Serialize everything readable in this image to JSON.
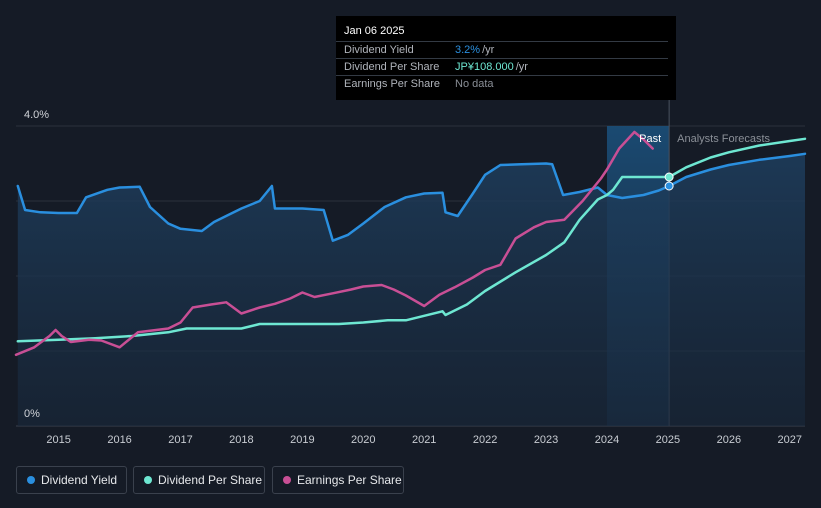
{
  "chart_data": {
    "type": "line",
    "title": "",
    "xlabel": "",
    "ylabel": "",
    "xlim": [
      2014.3,
      2027.25
    ],
    "ylim": [
      0,
      4.0
    ],
    "y_tick_labels": [
      "4.0%",
      "0%"
    ],
    "x_ticks": [
      "2015",
      "2016",
      "2017",
      "2018",
      "2019",
      "2020",
      "2021",
      "2022",
      "2023",
      "2024",
      "2025",
      "2026",
      "2027"
    ],
    "region_labels": {
      "past": "Past",
      "forecast": "Analysts Forecasts"
    },
    "forecast_start": 2025.02,
    "past_shade_start": 2024.0,
    "series": [
      {
        "name": "Dividend Yield",
        "color": "#2a8fdf",
        "fill": true,
        "points": [
          [
            2014.33,
            3.2
          ],
          [
            2014.45,
            2.88
          ],
          [
            2014.7,
            2.85
          ],
          [
            2015.0,
            2.84
          ],
          [
            2015.3,
            2.84
          ],
          [
            2015.45,
            3.05
          ],
          [
            2015.8,
            3.15
          ],
          [
            2016.0,
            3.18
          ],
          [
            2016.33,
            3.19
          ],
          [
            2016.5,
            2.92
          ],
          [
            2016.8,
            2.7
          ],
          [
            2017.0,
            2.63
          ],
          [
            2017.35,
            2.6
          ],
          [
            2017.55,
            2.72
          ],
          [
            2017.8,
            2.82
          ],
          [
            2018.0,
            2.9
          ],
          [
            2018.3,
            3.0
          ],
          [
            2018.5,
            3.2
          ],
          [
            2018.55,
            2.9
          ],
          [
            2018.8,
            2.9
          ],
          [
            2019.0,
            2.9
          ],
          [
            2019.35,
            2.88
          ],
          [
            2019.5,
            2.47
          ],
          [
            2019.75,
            2.55
          ],
          [
            2020.0,
            2.7
          ],
          [
            2020.35,
            2.92
          ],
          [
            2020.7,
            3.05
          ],
          [
            2021.0,
            3.1
          ],
          [
            2021.3,
            3.11
          ],
          [
            2021.35,
            2.85
          ],
          [
            2021.55,
            2.8
          ],
          [
            2021.8,
            3.1
          ],
          [
            2022.0,
            3.35
          ],
          [
            2022.25,
            3.48
          ],
          [
            2022.6,
            3.49
          ],
          [
            2023.0,
            3.5
          ],
          [
            2023.1,
            3.49
          ],
          [
            2023.28,
            3.08
          ],
          [
            2023.55,
            3.12
          ],
          [
            2023.85,
            3.18
          ],
          [
            2024.0,
            3.08
          ],
          [
            2024.25,
            3.04
          ],
          [
            2024.6,
            3.08
          ],
          [
            2024.85,
            3.14
          ],
          [
            2025.02,
            3.2
          ],
          [
            2025.3,
            3.32
          ],
          [
            2025.7,
            3.42
          ],
          [
            2026.0,
            3.48
          ],
          [
            2026.5,
            3.55
          ],
          [
            2027.0,
            3.6
          ],
          [
            2027.25,
            3.63
          ]
        ]
      },
      {
        "name": "Dividend Per Share",
        "color": "#6ee7d2",
        "fill": false,
        "points": [
          [
            2014.33,
            1.13
          ],
          [
            2015.0,
            1.15
          ],
          [
            2015.6,
            1.17
          ],
          [
            2016.2,
            1.2
          ],
          [
            2016.8,
            1.25
          ],
          [
            2017.1,
            1.3
          ],
          [
            2018.0,
            1.3
          ],
          [
            2018.3,
            1.36
          ],
          [
            2019.0,
            1.36
          ],
          [
            2019.6,
            1.36
          ],
          [
            2020.0,
            1.38
          ],
          [
            2020.4,
            1.41
          ],
          [
            2020.7,
            1.41
          ],
          [
            2021.0,
            1.47
          ],
          [
            2021.3,
            1.53
          ],
          [
            2021.35,
            1.48
          ],
          [
            2021.7,
            1.62
          ],
          [
            2022.0,
            1.8
          ],
          [
            2022.5,
            2.05
          ],
          [
            2023.0,
            2.28
          ],
          [
            2023.3,
            2.45
          ],
          [
            2023.55,
            2.75
          ],
          [
            2023.85,
            3.02
          ],
          [
            2024.0,
            3.08
          ],
          [
            2024.1,
            3.15
          ],
          [
            2024.25,
            3.32
          ],
          [
            2024.4,
            3.32
          ],
          [
            2025.02,
            3.32
          ],
          [
            2025.3,
            3.45
          ],
          [
            2025.7,
            3.58
          ],
          [
            2026.0,
            3.65
          ],
          [
            2026.5,
            3.74
          ],
          [
            2027.0,
            3.8
          ],
          [
            2027.25,
            3.83
          ]
        ]
      },
      {
        "name": "Earnings Per Share",
        "color": "#c84f95",
        "fill": false,
        "points": [
          [
            2014.3,
            0.95
          ],
          [
            2014.6,
            1.05
          ],
          [
            2014.85,
            1.2
          ],
          [
            2014.95,
            1.28
          ],
          [
            2015.05,
            1.2
          ],
          [
            2015.2,
            1.12
          ],
          [
            2015.5,
            1.15
          ],
          [
            2015.7,
            1.14
          ],
          [
            2016.0,
            1.05
          ],
          [
            2016.3,
            1.25
          ],
          [
            2016.8,
            1.3
          ],
          [
            2017.0,
            1.38
          ],
          [
            2017.2,
            1.58
          ],
          [
            2017.5,
            1.62
          ],
          [
            2017.75,
            1.65
          ],
          [
            2018.0,
            1.5
          ],
          [
            2018.3,
            1.58
          ],
          [
            2018.55,
            1.63
          ],
          [
            2018.8,
            1.7
          ],
          [
            2019.0,
            1.78
          ],
          [
            2019.2,
            1.72
          ],
          [
            2019.5,
            1.77
          ],
          [
            2019.8,
            1.82
          ],
          [
            2020.0,
            1.86
          ],
          [
            2020.3,
            1.88
          ],
          [
            2020.5,
            1.82
          ],
          [
            2020.7,
            1.74
          ],
          [
            2021.0,
            1.6
          ],
          [
            2021.25,
            1.75
          ],
          [
            2021.5,
            1.85
          ],
          [
            2021.8,
            1.98
          ],
          [
            2022.0,
            2.08
          ],
          [
            2022.25,
            2.15
          ],
          [
            2022.5,
            2.5
          ],
          [
            2022.8,
            2.65
          ],
          [
            2023.0,
            2.72
          ],
          [
            2023.3,
            2.75
          ],
          [
            2023.6,
            3.0
          ],
          [
            2023.9,
            3.3
          ],
          [
            2024.0,
            3.42
          ],
          [
            2024.2,
            3.7
          ],
          [
            2024.45,
            3.92
          ],
          [
            2024.6,
            3.82
          ],
          [
            2024.75,
            3.7
          ]
        ]
      }
    ],
    "highlight_points": [
      {
        "series": "Dividend Per Share",
        "x": 2025.02,
        "y": 3.32
      },
      {
        "series": "Dividend Yield",
        "x": 2025.02,
        "y": 3.2
      }
    ]
  },
  "tooltip": {
    "date": "Jan 06 2025",
    "rows": [
      {
        "label": "Dividend Yield",
        "value": "3.2%",
        "unit": "/yr",
        "color": "#2a8fdf"
      },
      {
        "label": "Dividend Per Share",
        "value": "JP¥108.000",
        "unit": "/yr",
        "color": "#6ee7d2"
      },
      {
        "label": "Earnings Per Share",
        "value": "No data",
        "unit": "",
        "color": "#8a8f97"
      }
    ]
  },
  "legend": {
    "items": [
      {
        "label": "Dividend Yield",
        "color": "#2a8fdf"
      },
      {
        "label": "Dividend Per Share",
        "color": "#6ee7d2"
      },
      {
        "label": "Earnings Per Share",
        "color": "#c84f95"
      }
    ]
  }
}
